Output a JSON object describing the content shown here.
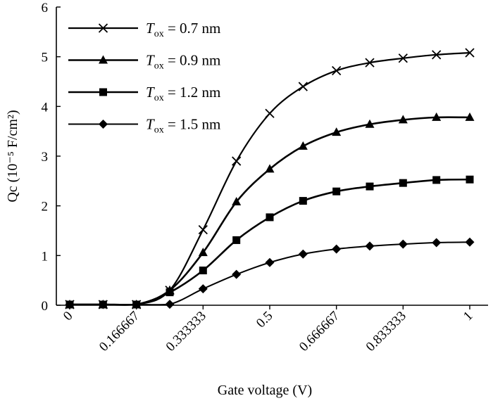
{
  "chart_data": {
    "type": "line",
    "title": "",
    "xlabel": "Gate voltage (V)",
    "ylabel": "Qc (10⁻⁵ F/cm²)",
    "xlim": [
      0,
      1.0333
    ],
    "ylim": [
      0,
      6
    ],
    "x_ticks": [
      0,
      0.166667,
      0.333333,
      0.5,
      0.666667,
      0.833333,
      1
    ],
    "x_tick_labels": [
      "0",
      "0.166667",
      "0.333333",
      "0.5",
      "0.666667",
      "0.833333",
      "1"
    ],
    "y_ticks": [
      0,
      1,
      2,
      3,
      4,
      5,
      6
    ],
    "y_tick_labels": [
      "0",
      "1",
      "2",
      "3",
      "4",
      "5",
      "6"
    ],
    "grid": false,
    "legend_position": "top-left",
    "x": [
      0,
      0.0833,
      0.1667,
      0.25,
      0.3333,
      0.4167,
      0.5,
      0.5833,
      0.6667,
      0.75,
      0.8333,
      0.9167,
      1.0
    ],
    "series": [
      {
        "name": "Tox = 0.7 nm",
        "name_main": "T",
        "name_sub": "ox",
        "name_rest": " = 0.7 nm",
        "marker": "x",
        "line_width": 2.2,
        "values": [
          0,
          0,
          0,
          0.3,
          1.52,
          2.9,
          3.86,
          4.4,
          4.72,
          4.88,
          4.97,
          5.04,
          5.08
        ]
      },
      {
        "name": "Tox = 0.9 nm",
        "name_main": "T",
        "name_sub": "ox",
        "name_rest": " = 0.9 nm",
        "marker": "triangle",
        "line_width": 2.6,
        "values": [
          0,
          0,
          0,
          0.3,
          1.06,
          2.08,
          2.74,
          3.2,
          3.48,
          3.64,
          3.73,
          3.78,
          3.78
        ]
      },
      {
        "name": "Tox = 1.2 nm",
        "name_main": "T",
        "name_sub": "ox",
        "name_rest": " = 1.2 nm",
        "marker": "square",
        "line_width": 2.6,
        "values": [
          0,
          0,
          0,
          0.26,
          0.7,
          1.31,
          1.77,
          2.1,
          2.29,
          2.39,
          2.46,
          2.52,
          2.53
        ]
      },
      {
        "name": "Tox = 1.5 nm",
        "name_main": "T",
        "name_sub": "ox",
        "name_rest": " = 1.5 nm",
        "marker": "diamond",
        "line_width": 2.0,
        "values": [
          0,
          0,
          0,
          0.02,
          0.33,
          0.62,
          0.86,
          1.03,
          1.13,
          1.19,
          1.23,
          1.26,
          1.27
        ]
      }
    ]
  }
}
